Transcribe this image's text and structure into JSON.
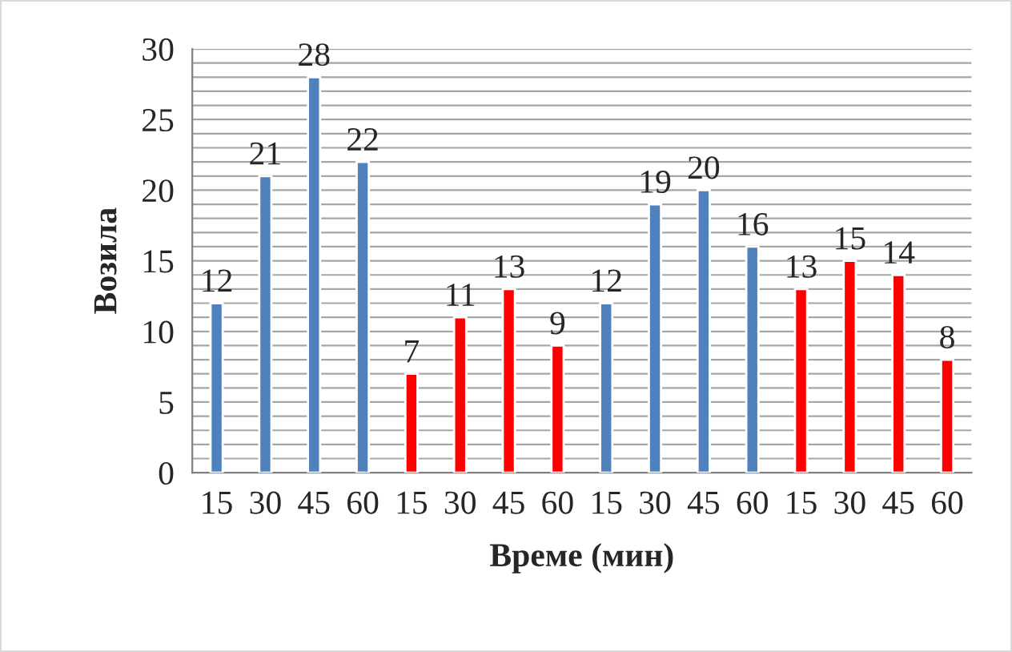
{
  "chart_data": {
    "type": "bar",
    "xlabel": "Време (мин)",
    "ylabel": "Возила",
    "categories": [
      "15",
      "30",
      "45",
      "60",
      "15",
      "30",
      "45",
      "60",
      "15",
      "30",
      "45",
      "60",
      "15",
      "30",
      "45",
      "60"
    ],
    "values": [
      12,
      21,
      28,
      22,
      7,
      11,
      13,
      9,
      12,
      19,
      20,
      16,
      13,
      15,
      14,
      8
    ],
    "colors": [
      "#4f81bd",
      "#4f81bd",
      "#4f81bd",
      "#4f81bd",
      "#ff0000",
      "#ff0000",
      "#ff0000",
      "#ff0000",
      "#4f81bd",
      "#4f81bd",
      "#4f81bd",
      "#4f81bd",
      "#ff0000",
      "#ff0000",
      "#ff0000",
      "#ff0000"
    ],
    "ylim": [
      0,
      30
    ],
    "yticks": [
      0,
      {
        "value": 1,
        "label": null
      },
      {
        "value": 2,
        "label": null
      },
      {
        "value": 3,
        "label": null
      },
      {
        "value": 4,
        "label": null
      },
      5,
      {
        "value": 6,
        "label": null
      },
      {
        "value": 7,
        "label": null
      },
      {
        "value": 8,
        "label": null
      },
      {
        "value": 9,
        "label": null
      },
      10,
      {
        "value": 11,
        "label": null
      },
      {
        "value": 12,
        "label": null
      },
      {
        "value": 13,
        "label": null
      },
      {
        "value": 14,
        "label": null
      },
      15,
      {
        "value": 16,
        "label": null
      },
      {
        "value": 17,
        "label": null
      },
      {
        "value": 18,
        "label": null
      },
      {
        "value": 19,
        "label": null
      },
      20,
      {
        "value": 21,
        "label": null
      },
      {
        "value": 22,
        "label": null
      },
      {
        "value": 23,
        "label": null
      },
      {
        "value": 24,
        "label": null
      },
      25,
      {
        "value": 26,
        "label": null
      },
      {
        "value": 27,
        "label": null
      },
      {
        "value": 28,
        "label": null
      },
      {
        "value": 29,
        "label": null
      },
      30
    ],
    "grid": "y",
    "data_labels": true
  }
}
